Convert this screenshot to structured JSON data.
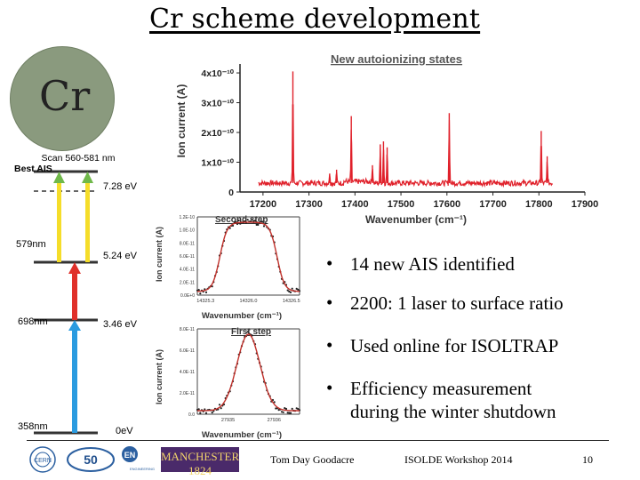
{
  "slide": {
    "title": "Cr scheme development",
    "element_symbol": "Cr",
    "bullets": [
      {
        "lines": [
          "14 new AIS identified"
        ]
      },
      {
        "lines": [
          "2200: 1 laser to surface ratio"
        ]
      },
      {
        "lines": [
          "Used online for ISOLTRAP"
        ]
      },
      {
        "lines": [
          "Efficiency measurement",
          "during the winter shutdown"
        ]
      }
    ],
    "footer": {
      "author": "Tom Day Goodacre",
      "event": "ISOLDE Workshop 2014",
      "page": "10",
      "logos": [
        "CERN",
        "ISOLDE 50 years",
        "EN Engineering Department",
        "MANCHESTER 1824"
      ]
    }
  },
  "scheme": {
    "levels": [
      {
        "energy": "0eV",
        "label": "358nm"
      },
      {
        "energy": "3.46 eV",
        "label": "698nm"
      },
      {
        "energy": "5.24 eV",
        "label": "579nm"
      },
      {
        "energy": "7.28 eV",
        "label": "Best AIS"
      }
    ],
    "scan_label": "Scan 560-581 nm",
    "colors": {
      "blue": "#2a9be0",
      "red": "#e0302a",
      "yellow": "#f5dd2a",
      "green": "#6fb84a"
    }
  },
  "chart_data": [
    {
      "type": "line",
      "title": "New autoionizing states",
      "xlabel": "Wavenumber (cm⁻¹)",
      "ylabel": "Ion current (A)",
      "xlim": [
        17150,
        17900
      ],
      "ylim": [
        0,
        4.3e-10
      ],
      "x_ticks": [
        "17200",
        "17300",
        "17400",
        "17500",
        "17600",
        "17700",
        "17800",
        "17900"
      ],
      "y_ticks": [
        "0",
        "1x10⁻¹⁰",
        "2x10⁻¹⁰",
        "3x10⁻¹⁰",
        "4x10⁻¹⁰"
      ],
      "color": "#e0202a",
      "baseline": 3e-11,
      "peaks": [
        {
          "x": 17265,
          "y": 4.05e-10
        },
        {
          "x": 17345,
          "y": 6.2e-11
        },
        {
          "x": 17360,
          "y": 7.5e-11
        },
        {
          "x": 17392,
          "y": 2.55e-10
        },
        {
          "x": 17438,
          "y": 9e-11
        },
        {
          "x": 17455,
          "y": 1.6e-10
        },
        {
          "x": 17462,
          "y": 1.7e-10
        },
        {
          "x": 17470,
          "y": 1.5e-10
        },
        {
          "x": 17605,
          "y": 2.65e-10
        },
        {
          "x": 17805,
          "y": 2.05e-10
        },
        {
          "x": 17818,
          "y": 1.2e-10
        }
      ]
    },
    {
      "type": "scatter",
      "title": "Second step",
      "xlabel": "Wavenumber (cm⁻¹)",
      "ylabel": "Ion current (A)",
      "x_ticks": [
        "14325.3",
        "14326.0",
        "14326.5"
      ],
      "y_ticks": [
        "0.0E+0",
        "2.0E-11",
        "4.0E-11",
        "6.0E-11",
        "8.0E-11",
        "1.0E-10",
        "1.2E-10"
      ],
      "shape": "plateau",
      "fit_color": "#c0302a"
    },
    {
      "type": "scatter",
      "title": "First step",
      "xlabel": "Wavenumber (cm⁻¹)",
      "ylabel": "Ion current (A)",
      "x_ticks": [
        "27935",
        "27936"
      ],
      "y_ticks": [
        "0.0",
        "2.0E-11",
        "4.0E-11",
        "6.0E-11",
        "8.0E-11"
      ],
      "shape": "gaussian",
      "fit_color": "#c0302a"
    }
  ]
}
